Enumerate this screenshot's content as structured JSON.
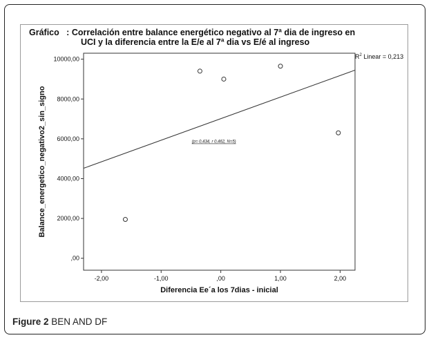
{
  "chart_data": {
    "type": "scatter",
    "title_line1": "Gráfico   : Correlación entre balance energético negativo al 7ª dia de ingreso en",
    "title_line2": "UCI y la diferencia entre la E/e al 7ª dia vs E/é al ingreso",
    "xlabel": "Diferencia Ee´a los 7dias - inicial",
    "ylabel": "Balance_energetico_negativo2_sin_signo",
    "xlim": [
      -2.3,
      2.25
    ],
    "ylim": [
      -600,
      10300
    ],
    "x_ticks": [
      -2,
      -1,
      0,
      1,
      2
    ],
    "x_tick_labels": [
      "-2,00",
      "-1,00",
      ",00",
      "1,00",
      "2,00"
    ],
    "y_ticks": [
      0,
      2000,
      4000,
      6000,
      8000,
      10000
    ],
    "y_tick_labels": [
      ",00",
      "2000,00",
      "4000,00",
      "6000,00",
      "8000,00",
      "10000,00"
    ],
    "points": [
      {
        "x": -1.6,
        "y": 1950
      },
      {
        "x": -0.35,
        "y": 9400
      },
      {
        "x": 0.05,
        "y": 9000
      },
      {
        "x": 1.0,
        "y": 9650
      },
      {
        "x": 1.97,
        "y": 6300
      }
    ],
    "fit_line": {
      "x": [
        -2.3,
        2.25
      ],
      "y": [
        4520,
        9450
      ]
    },
    "r2_label": "Linear = 0,213",
    "annotation": "(p= 0,434, r 0,462, N=5)",
    "grid": false,
    "legend": "none"
  },
  "caption": {
    "figure_label": "Figure 2",
    "text": "BEN AND DF"
  }
}
